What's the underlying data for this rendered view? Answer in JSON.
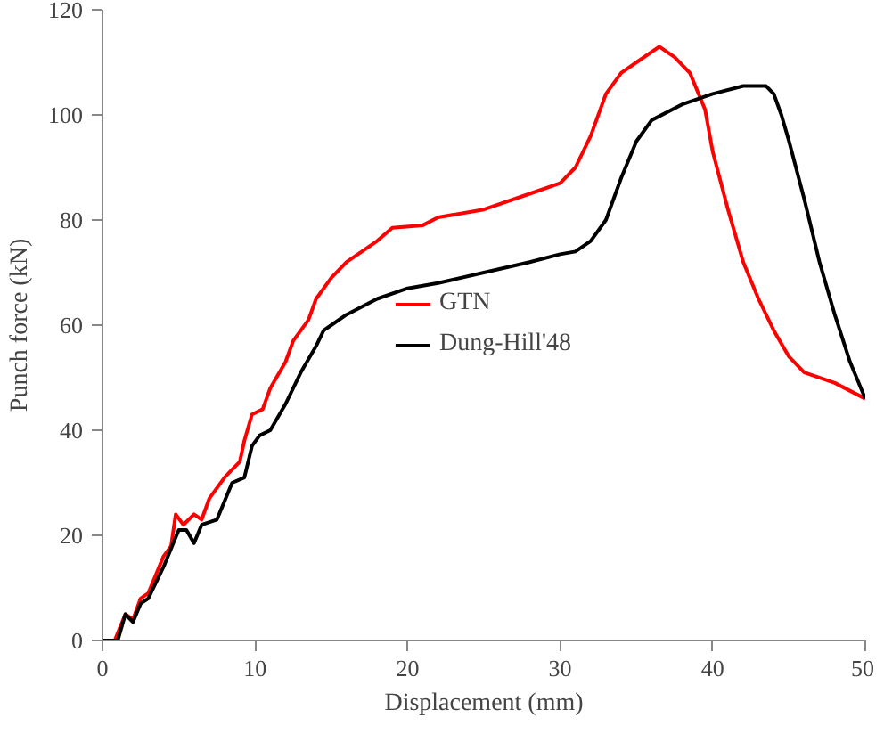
{
  "chart_data": {
    "type": "line",
    "xlabel": "Displacement (mm)",
    "ylabel": "Punch force (kN)",
    "xlim": [
      0,
      50
    ],
    "xticks": [
      0,
      10,
      20,
      30,
      40,
      50
    ],
    "ylim": [
      0,
      120
    ],
    "yticks": [
      0,
      20,
      40,
      60,
      80,
      100,
      120
    ],
    "grid": false,
    "legend": "center",
    "marker": "none",
    "line_style": "solid",
    "series": [
      {
        "name": "GTN",
        "color": "#ff0000",
        "x": [
          0,
          0.8,
          1.5,
          2,
          2.5,
          3,
          4,
          4.5,
          4.8,
          5.3,
          6,
          6.5,
          7,
          8,
          9,
          9.3,
          9.8,
          10.5,
          11,
          12,
          12.5,
          13.5,
          14,
          15,
          16,
          18,
          19,
          21,
          22,
          25,
          28,
          30,
          31,
          32,
          33,
          34,
          35,
          36.5,
          37.5,
          38.5,
          39.5,
          40,
          41,
          42,
          43,
          44,
          45,
          46,
          48,
          50
        ],
        "values": [
          0,
          0,
          5,
          4,
          8,
          9,
          16,
          18,
          24,
          22,
          24,
          23,
          27,
          31,
          34,
          38,
          43,
          44,
          48,
          53,
          57,
          61,
          65,
          69,
          72,
          76,
          78.5,
          79,
          80.5,
          82,
          85,
          87,
          90,
          96,
          104,
          108,
          110,
          113,
          111,
          108,
          101,
          93,
          82,
          72,
          65,
          59,
          54,
          51,
          49,
          46
        ]
      },
      {
        "name": "Dung-Hill'48",
        "color": "#000000",
        "x": [
          0,
          1,
          1.5,
          2,
          2.5,
          3,
          4,
          5,
          5.5,
          6,
          6.5,
          7.5,
          8.5,
          9.3,
          9.8,
          10.3,
          11,
          12,
          13,
          14,
          14.5,
          15,
          16,
          18,
          20,
          22,
          25,
          28,
          30,
          31,
          32,
          33,
          34,
          35,
          36,
          38,
          40,
          42,
          43.5,
          44,
          44.5,
          45,
          46,
          47,
          48,
          49,
          50
        ],
        "values": [
          0,
          0,
          5,
          3.5,
          7,
          8,
          14,
          21,
          21,
          18.5,
          22,
          23,
          30,
          31,
          37,
          39,
          40,
          45,
          51,
          56,
          59,
          60,
          62,
          65,
          67,
          68,
          70,
          72,
          73.5,
          74,
          76,
          80,
          88,
          95,
          99,
          102,
          104,
          105.5,
          105.5,
          104,
          100,
          95,
          84,
          72,
          62,
          53,
          46
        ]
      }
    ]
  }
}
